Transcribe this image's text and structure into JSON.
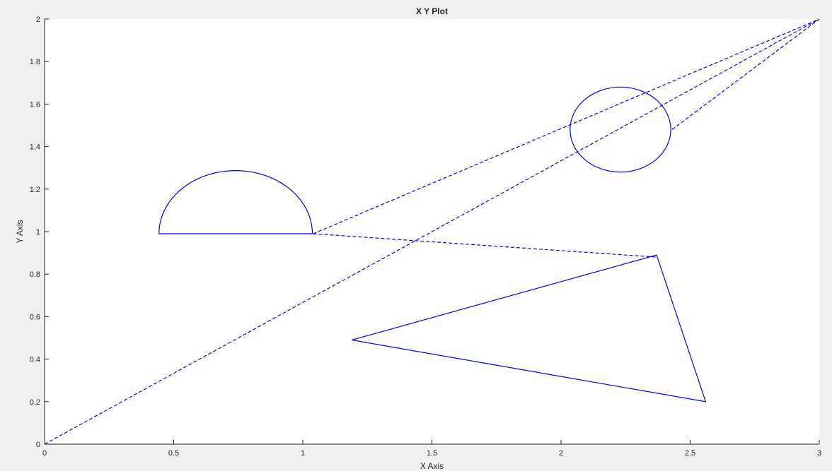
{
  "chart_data": {
    "type": "line",
    "title": "X Y Plot",
    "xlabel": "X Axis",
    "ylabel": "Y Axis",
    "xlim": [
      0,
      3
    ],
    "ylim": [
      0,
      2
    ],
    "grid": false,
    "x_ticks": [
      0,
      0.5,
      1,
      1.5,
      2,
      2.5,
      3
    ],
    "x_tick_labels": [
      "0",
      "0.5",
      "1",
      "1.5",
      "2",
      "2.5",
      "3"
    ],
    "y_ticks": [
      0,
      0.2,
      0.4,
      0.6,
      0.8,
      1,
      1.2,
      1.4,
      1.6,
      1.8,
      2
    ],
    "y_tick_labels": [
      "0",
      "0.2",
      "0.4",
      "0.6",
      "0.8",
      "1",
      "1.2",
      "1.4",
      "1.6",
      "1.8",
      "2"
    ],
    "colors": {
      "line": "#0000ff",
      "axes_background": "#ffffff",
      "figure_background": "#f0f0f0",
      "axis": "#262626"
    },
    "series": [
      {
        "shape": "semicircle",
        "style": "solid",
        "center": [
          0.74,
          0.99
        ],
        "radius": 0.297,
        "y_scale": 1.0
      },
      {
        "shape": "circle",
        "style": "solid",
        "center": [
          2.23,
          1.48
        ],
        "rx": 0.195,
        "ry": 0.2
      },
      {
        "shape": "polyline",
        "style": "solid",
        "x": [
          1.19,
          2.37,
          2.56,
          1.19
        ],
        "y": [
          0.49,
          0.89,
          0.2,
          0.49
        ]
      },
      {
        "shape": "polyline",
        "style": "dashed",
        "x": [
          0,
          3
        ],
        "y": [
          0,
          2
        ]
      },
      {
        "shape": "polyline",
        "style": "dashed",
        "x": [
          1.04,
          3
        ],
        "y": [
          0.99,
          2
        ]
      },
      {
        "shape": "polyline",
        "style": "dashed",
        "x": [
          2.43,
          3
        ],
        "y": [
          1.48,
          2
        ]
      },
      {
        "shape": "polyline",
        "style": "dashed",
        "x": [
          1.04,
          2.37
        ],
        "y": [
          0.99,
          0.88
        ]
      }
    ]
  }
}
